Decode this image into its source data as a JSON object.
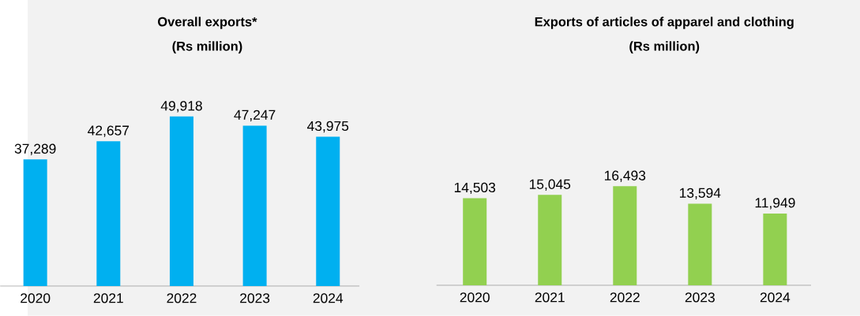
{
  "chart_data": [
    {
      "type": "bar",
      "title": "Overall exports*",
      "subtitle": "(Rs million)",
      "categories": [
        "2020",
        "2021",
        "2022",
        "2023",
        "2024"
      ],
      "values": [
        37289,
        42657,
        49918,
        47247,
        43975
      ],
      "color": "#00b0f0",
      "value_labels": [
        "37,289",
        "42,657",
        "49,918",
        "47,247",
        "43,975"
      ]
    },
    {
      "type": "bar",
      "title": "Exports of articles of apparel and clothing",
      "subtitle": "(Rs million)",
      "categories": [
        "2020",
        "2021",
        "2022",
        "2023",
        "2024"
      ],
      "values": [
        14503,
        15045,
        16493,
        13594,
        11949
      ],
      "color": "#92d050",
      "value_labels": [
        "14,503",
        "15,045",
        "16,493",
        "13,594",
        "11,949"
      ]
    }
  ]
}
